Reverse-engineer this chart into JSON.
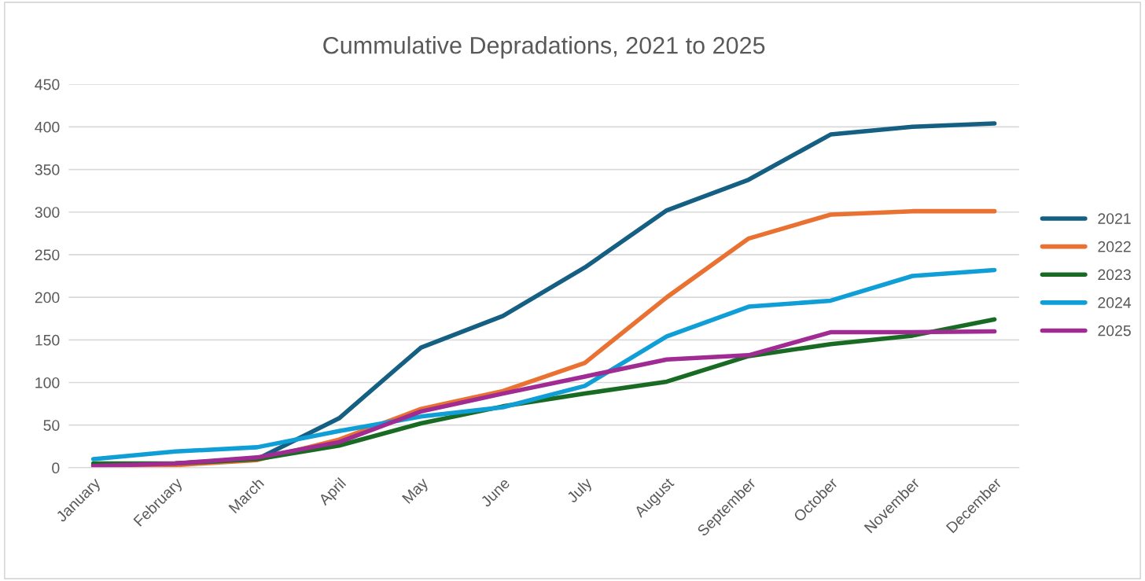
{
  "chart_data": {
    "type": "line",
    "title": "Cummulative Depradations, 2021 to 2025",
    "categories": [
      "January",
      "February",
      "March",
      "April",
      "May",
      "June",
      "July",
      "August",
      "September",
      "October",
      "November",
      "December"
    ],
    "series": [
      {
        "name": "2021",
        "color": "#156082",
        "values": [
          3,
          5,
          10,
          58,
          141,
          178,
          235,
          302,
          338,
          391,
          400,
          404
        ]
      },
      {
        "name": "2022",
        "color": "#e97132",
        "values": [
          2,
          3,
          9,
          33,
          69,
          90,
          123,
          200,
          269,
          297,
          301,
          301
        ]
      },
      {
        "name": "2023",
        "color": "#196b24",
        "values": [
          5,
          5,
          10,
          26,
          52,
          72,
          87,
          101,
          131,
          145,
          155,
          174
        ]
      },
      {
        "name": "2024",
        "color": "#0f9ed5",
        "values": [
          10,
          19,
          24,
          43,
          60,
          71,
          96,
          154,
          189,
          196,
          225,
          232
        ]
      },
      {
        "name": "2025",
        "color": "#a02b93",
        "values": [
          2,
          5,
          12,
          30,
          66,
          87,
          107,
          127,
          132,
          159,
          159,
          160
        ]
      }
    ],
    "ylim": [
      0,
      450
    ],
    "yticks": [
      0,
      50,
      100,
      150,
      200,
      250,
      300,
      350,
      400,
      450
    ],
    "grid": "y",
    "legend": "right",
    "marker": "none",
    "line_style": "solid"
  }
}
